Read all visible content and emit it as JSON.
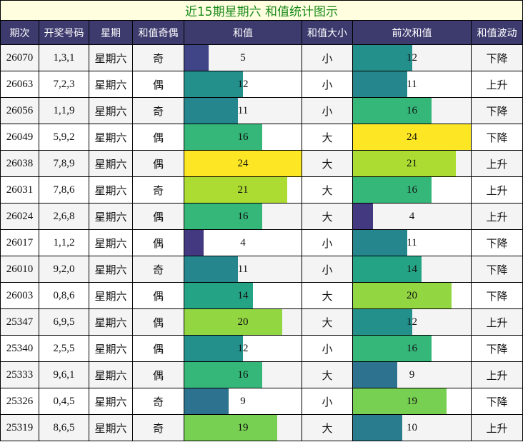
{
  "title": "近15期星期六 和值统计图示",
  "table": {
    "columns": [
      "期次",
      "开奖号码",
      "星期",
      "和值奇偶",
      "和值",
      "和值大小",
      "前次和值",
      "和值波动"
    ],
    "rows": [
      [
        "26070",
        "1,3,1",
        "星期六",
        "奇",
        5,
        "小",
        12,
        "下降"
      ],
      [
        "26063",
        "7,2,3",
        "星期六",
        "偶",
        12,
        "小",
        11,
        "上升"
      ],
      [
        "26056",
        "1,1,9",
        "星期六",
        "奇",
        11,
        "小",
        16,
        "下降"
      ],
      [
        "26049",
        "5,9,2",
        "星期六",
        "偶",
        16,
        "大",
        24,
        "下降"
      ],
      [
        "26038",
        "7,8,9",
        "星期六",
        "偶",
        24,
        "大",
        21,
        "上升"
      ],
      [
        "26031",
        "7,8,6",
        "星期六",
        "奇",
        21,
        "大",
        16,
        "上升"
      ],
      [
        "26024",
        "2,6,8",
        "星期六",
        "偶",
        16,
        "大",
        4,
        "上升"
      ],
      [
        "26017",
        "1,1,2",
        "星期六",
        "偶",
        4,
        "小",
        11,
        "下降"
      ],
      [
        "26010",
        "9,2,0",
        "星期六",
        "奇",
        11,
        "小",
        14,
        "下降"
      ],
      [
        "26003",
        "0,8,6",
        "星期六",
        "偶",
        14,
        "大",
        20,
        "下降"
      ],
      [
        "25347",
        "6,9,5",
        "星期六",
        "偶",
        20,
        "大",
        12,
        "上升"
      ],
      [
        "25340",
        "2,5,5",
        "星期六",
        "偶",
        12,
        "小",
        16,
        "下降"
      ],
      [
        "25333",
        "9,6,1",
        "星期六",
        "偶",
        16,
        "大",
        9,
        "上升"
      ],
      [
        "25326",
        "0,4,5",
        "星期六",
        "奇",
        9,
        "小",
        19,
        "下降"
      ],
      [
        "25319",
        "8,6,5",
        "星期六",
        "奇",
        19,
        "大",
        10,
        "上升"
      ]
    ]
  }
}
